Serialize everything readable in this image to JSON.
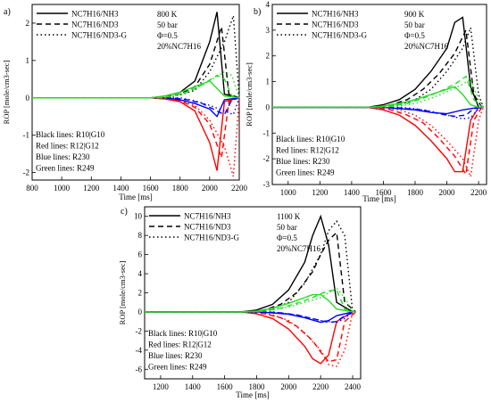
{
  "chart_data": [
    {
      "type": "line",
      "panel_label": "a)",
      "ylabel": "ROP [mole/cm3-sec]",
      "xlabel": "Time [ms]",
      "xlim": [
        800,
        2200
      ],
      "ylim": [
        -2.2,
        2.5
      ],
      "xticks": [
        800,
        1000,
        1200,
        1400,
        1600,
        1800,
        2000,
        2200
      ],
      "yticks": [
        -2,
        -1,
        0,
        1,
        2
      ],
      "legend": [
        "NC7H16/NH3",
        "NC7H16/ND3",
        "NC7H16/ND3-G"
      ],
      "conditions": [
        "800 K",
        "50 bar",
        "Φ=0.5",
        "20%NC7H16"
      ],
      "notes": [
        "Black lines: R10|G10",
        "Red lines: R12|G12",
        "Blue lines: R230",
        "Green lines: R249"
      ],
      "series": [
        {
          "color": "black",
          "dash": "solid",
          "x": [
            800,
            1600,
            1700,
            1800,
            1900,
            2000,
            2050,
            2100,
            2200
          ],
          "y": [
            0,
            0,
            0.05,
            0.15,
            0.45,
            1.5,
            2.3,
            0.1,
            0
          ]
        },
        {
          "color": "black",
          "dash": "dashed",
          "x": [
            800,
            1600,
            1700,
            1800,
            1900,
            2000,
            2080,
            2130,
            2200
          ],
          "y": [
            0,
            0,
            0.03,
            0.1,
            0.3,
            0.9,
            1.9,
            0.1,
            0
          ]
        },
        {
          "color": "black",
          "dash": "dotted",
          "x": [
            800,
            1700,
            1800,
            1900,
            2000,
            2100,
            2160,
            2200
          ],
          "y": [
            0,
            0,
            0.08,
            0.2,
            0.7,
            1.5,
            2.2,
            0
          ]
        },
        {
          "color": "red",
          "dash": "solid",
          "x": [
            800,
            1600,
            1700,
            1800,
            1900,
            2000,
            2050,
            2100,
            2200
          ],
          "y": [
            0,
            0,
            -0.03,
            -0.1,
            -0.35,
            -1.2,
            -1.95,
            -0.1,
            0
          ]
        },
        {
          "color": "red",
          "dash": "dashed",
          "x": [
            800,
            1600,
            1700,
            1800,
            1900,
            2000,
            2080,
            2130,
            2200
          ],
          "y": [
            0,
            0,
            -0.02,
            -0.08,
            -0.25,
            -0.7,
            -1.6,
            -0.1,
            0
          ]
        },
        {
          "color": "red",
          "dash": "dotted",
          "x": [
            800,
            1700,
            1800,
            1900,
            2000,
            2100,
            2160,
            2200
          ],
          "y": [
            0,
            0,
            -0.06,
            -0.2,
            -0.6,
            -1.3,
            -2.1,
            0
          ]
        },
        {
          "color": "blue",
          "dash": "solid",
          "x": [
            800,
            1700,
            1800,
            1900,
            2000,
            2050,
            2100,
            2200
          ],
          "y": [
            0,
            0,
            -0.05,
            -0.15,
            -0.3,
            -0.5,
            -0.05,
            0
          ]
        },
        {
          "color": "blue",
          "dash": "dashed",
          "x": [
            800,
            1750,
            1850,
            1950,
            2050,
            2100,
            2150,
            2200
          ],
          "y": [
            0,
            0,
            -0.05,
            -0.15,
            -0.35,
            -0.45,
            -0.05,
            0
          ]
        },
        {
          "color": "blue",
          "dash": "dotted",
          "x": [
            800,
            1800,
            1900,
            2000,
            2100,
            2160,
            2200
          ],
          "y": [
            0,
            0,
            -0.08,
            -0.2,
            -0.35,
            -0.45,
            0
          ]
        },
        {
          "color": "#22dd22",
          "dash": "solid",
          "x": [
            800,
            1600,
            1700,
            1800,
            1900,
            2000,
            2050,
            2100,
            2200
          ],
          "y": [
            0,
            0,
            0.05,
            0.15,
            0.3,
            0.45,
            0.25,
            0.05,
            0
          ]
        },
        {
          "color": "#22dd22",
          "dash": "dashed",
          "x": [
            800,
            1650,
            1750,
            1850,
            1950,
            2050,
            2100,
            2150,
            2200
          ],
          "y": [
            0,
            0,
            0.05,
            0.15,
            0.35,
            0.6,
            0.5,
            0.05,
            0
          ]
        },
        {
          "color": "#22dd22",
          "dash": "dotted",
          "x": [
            800,
            1700,
            1800,
            1900,
            2000,
            2100,
            2150,
            2200
          ],
          "y": [
            0,
            0,
            0.1,
            0.25,
            0.45,
            0.7,
            0.6,
            0
          ]
        }
      ]
    },
    {
      "type": "line",
      "panel_label": "b)",
      "ylabel": "ROP [mole/cm3-sec]",
      "xlabel": "Time [ms]",
      "xlim": [
        900,
        2250
      ],
      "ylim": [
        -3,
        4
      ],
      "xticks": [
        1000,
        1200,
        1400,
        1600,
        1800,
        2000,
        2200
      ],
      "yticks": [
        -3,
        -2,
        -1,
        0,
        1,
        2,
        3,
        4
      ],
      "legend": [
        "NC7H16/NH3",
        "NC7H16/ND3",
        "NC7H16/ND3-G"
      ],
      "conditions": [
        "900 K",
        "50 bar",
        "Φ=0.5",
        "20%NC7H16"
      ],
      "notes": [
        "Black lines: R10|G10",
        "Red lines: R12|G12",
        "Blue lines: R230",
        "Green lines: R249"
      ],
      "series": [
        {
          "color": "black",
          "dash": "solid",
          "x": [
            900,
            1500,
            1600,
            1700,
            1800,
            1900,
            2000,
            2050,
            2100,
            2150,
            2200
          ],
          "y": [
            0,
            0,
            0.1,
            0.3,
            0.7,
            1.4,
            2.3,
            3.3,
            3.5,
            0.8,
            0
          ]
        },
        {
          "color": "black",
          "dash": "dashed",
          "x": [
            900,
            1550,
            1650,
            1750,
            1850,
            1950,
            2050,
            2120,
            2170,
            2220
          ],
          "y": [
            0,
            0,
            0.1,
            0.3,
            0.7,
            1.3,
            2.1,
            3.0,
            0.5,
            0
          ]
        },
        {
          "color": "black",
          "dash": "dotted",
          "x": [
            900,
            1600,
            1700,
            1800,
            1900,
            2000,
            2100,
            2150,
            2200,
            2230
          ],
          "y": [
            0,
            0,
            0.1,
            0.3,
            0.7,
            1.4,
            2.3,
            3.1,
            0.5,
            0
          ]
        },
        {
          "color": "red",
          "dash": "solid",
          "x": [
            900,
            1500,
            1600,
            1700,
            1800,
            1900,
            2000,
            2050,
            2100,
            2150,
            2200
          ],
          "y": [
            0,
            0,
            -0.1,
            -0.3,
            -0.7,
            -1.3,
            -2.0,
            -2.5,
            -2.5,
            -0.5,
            0
          ]
        },
        {
          "color": "red",
          "dash": "dashed",
          "x": [
            900,
            1550,
            1650,
            1750,
            1850,
            1950,
            2050,
            2120,
            2170,
            2220
          ],
          "y": [
            0,
            0,
            -0.1,
            -0.3,
            -0.6,
            -1.2,
            -1.9,
            -2.6,
            -0.5,
            0
          ]
        },
        {
          "color": "red",
          "dash": "dotted",
          "x": [
            900,
            1600,
            1700,
            1800,
            1900,
            2000,
            2100,
            2150,
            2200,
            2230
          ],
          "y": [
            0,
            0,
            -0.1,
            -0.3,
            -0.7,
            -1.3,
            -2.0,
            -2.7,
            -0.5,
            0
          ]
        },
        {
          "color": "blue",
          "dash": "solid",
          "x": [
            900,
            1600,
            1700,
            1800,
            1900,
            2000,
            2100,
            2150,
            2200
          ],
          "y": [
            0,
            0,
            -0.05,
            -0.1,
            -0.2,
            -0.25,
            -0.1,
            -0.05,
            0
          ]
        },
        {
          "color": "blue",
          "dash": "dashed",
          "x": [
            900,
            1650,
            1750,
            1850,
            1950,
            2050,
            2120,
            2170,
            2220
          ],
          "y": [
            0,
            0,
            -0.05,
            -0.1,
            -0.25,
            -0.35,
            -0.3,
            -0.05,
            0
          ]
        },
        {
          "color": "blue",
          "dash": "dotted",
          "x": [
            900,
            1700,
            1800,
            1900,
            2000,
            2100,
            2150,
            2200,
            2230
          ],
          "y": [
            0,
            0,
            -0.05,
            -0.15,
            -0.3,
            -0.45,
            -0.4,
            -0.05,
            0
          ]
        },
        {
          "color": "#22dd22",
          "dash": "solid",
          "x": [
            900,
            1500,
            1600,
            1700,
            1800,
            1900,
            2000,
            2050,
            2100,
            2150,
            2200
          ],
          "y": [
            0,
            0,
            0.05,
            0.15,
            0.3,
            0.5,
            0.7,
            0.8,
            0.5,
            0.1,
            0
          ]
        },
        {
          "color": "#22dd22",
          "dash": "dashed",
          "x": [
            900,
            1550,
            1650,
            1750,
            1850,
            1950,
            2050,
            2120,
            2170,
            2220
          ],
          "y": [
            0,
            0,
            0.05,
            0.15,
            0.35,
            0.6,
            0.9,
            1.2,
            0.3,
            0
          ]
        },
        {
          "color": "#22dd22",
          "dash": "dotted",
          "x": [
            900,
            1600,
            1700,
            1800,
            1900,
            2000,
            2100,
            2150,
            2200,
            2230
          ],
          "y": [
            0,
            0,
            0.05,
            0.15,
            0.35,
            0.6,
            0.9,
            1.1,
            0.3,
            0
          ]
        }
      ]
    },
    {
      "type": "line",
      "panel_label": "c)",
      "ylabel": "ROP [mole/cm3-sec]",
      "xlabel": "Time [ms]",
      "xlim": [
        1100,
        2450
      ],
      "ylim": [
        -7,
        11
      ],
      "xticks": [
        1200,
        1400,
        1600,
        1800,
        2000,
        2200,
        2400
      ],
      "yticks": [
        -6,
        -4,
        -2,
        0,
        2,
        4,
        6,
        8,
        10
      ],
      "legend": [
        "NC7H16/NH3",
        "NC7H16/ND3",
        "NC7H16/ND3-G"
      ],
      "conditions": [
        "1100 K",
        "50 bar",
        "Φ=0.5",
        "20%NC7H16"
      ],
      "notes": [
        "Black lines: R10|G10",
        "Red lines: R12|G12",
        "Blue lines: R230",
        "Green lines: R249"
      ],
      "series": [
        {
          "color": "black",
          "dash": "solid",
          "x": [
            1100,
            1700,
            1800,
            1900,
            2000,
            2100,
            2150,
            2200,
            2250,
            2300,
            2400
          ],
          "y": [
            0,
            0,
            0.2,
            0.8,
            2.3,
            5.2,
            8.0,
            10.0,
            7.0,
            1.0,
            0
          ]
        },
        {
          "color": "black",
          "dash": "dashed",
          "x": [
            1100,
            1750,
            1850,
            1950,
            2050,
            2150,
            2200,
            2250,
            2300,
            2350,
            2420
          ],
          "y": [
            0,
            0,
            0.2,
            0.8,
            2.0,
            4.2,
            6.0,
            7.5,
            8.3,
            1.0,
            0
          ]
        },
        {
          "color": "black",
          "dash": "dotted",
          "x": [
            1100,
            1800,
            1900,
            2000,
            2100,
            2200,
            2250,
            2300,
            2350,
            2400
          ],
          "y": [
            0,
            0,
            0.3,
            1.0,
            3.0,
            6.0,
            8.5,
            9.5,
            8.0,
            0
          ]
        },
        {
          "color": "red",
          "dash": "solid",
          "x": [
            1100,
            1700,
            1800,
            1900,
            2000,
            2100,
            2150,
            2200,
            2250,
            2300,
            2400
          ],
          "y": [
            0,
            0,
            -0.2,
            -0.7,
            -1.8,
            -3.6,
            -4.9,
            -5.4,
            -4.5,
            -1.0,
            0
          ]
        },
        {
          "color": "red",
          "dash": "dashed",
          "x": [
            1100,
            1750,
            1850,
            1950,
            2050,
            2150,
            2200,
            2250,
            2300,
            2350,
            2420
          ],
          "y": [
            0,
            0,
            -0.2,
            -0.6,
            -1.5,
            -3.0,
            -4.2,
            -5.2,
            -5.0,
            -1.0,
            0
          ]
        },
        {
          "color": "red",
          "dash": "dotted",
          "x": [
            1100,
            1800,
            1900,
            2000,
            2100,
            2200,
            2250,
            2300,
            2350,
            2400
          ],
          "y": [
            0,
            0,
            -0.3,
            -0.9,
            -2.2,
            -4.0,
            -5.5,
            -5.7,
            -4.0,
            0
          ]
        },
        {
          "color": "blue",
          "dash": "solid",
          "x": [
            1100,
            1800,
            1900,
            2000,
            2100,
            2200,
            2250,
            2300,
            2400
          ],
          "y": [
            0,
            0,
            -0.1,
            -0.25,
            -0.6,
            -1.1,
            -0.9,
            -0.4,
            0
          ]
        },
        {
          "color": "blue",
          "dash": "dashed",
          "x": [
            1100,
            1850,
            1950,
            2050,
            2150,
            2250,
            2300,
            2350,
            2420
          ],
          "y": [
            0,
            0,
            -0.1,
            -0.3,
            -0.7,
            -1.1,
            -1.0,
            -0.4,
            0
          ]
        },
        {
          "color": "blue",
          "dash": "dotted",
          "x": [
            1100,
            1900,
            2000,
            2100,
            2200,
            2300,
            2350,
            2400
          ],
          "y": [
            0,
            0,
            -0.2,
            -0.5,
            -0.9,
            -1.1,
            -0.7,
            0
          ]
        },
        {
          "color": "#22dd22",
          "dash": "solid",
          "x": [
            1100,
            1700,
            1800,
            1900,
            2000,
            2100,
            2150,
            2200,
            2250,
            2300,
            2400
          ],
          "y": [
            0,
            0,
            0.1,
            0.4,
            0.9,
            1.5,
            1.8,
            1.8,
            1.2,
            0.3,
            0
          ]
        },
        {
          "color": "#22dd22",
          "dash": "dashed",
          "x": [
            1100,
            1750,
            1850,
            1950,
            2050,
            2150,
            2200,
            2250,
            2300,
            2350,
            2420
          ],
          "y": [
            0,
            0,
            0.1,
            0.4,
            0.9,
            1.5,
            1.9,
            2.2,
            2.3,
            0.3,
            0
          ]
        },
        {
          "color": "#22dd22",
          "dash": "dotted",
          "x": [
            1100,
            1800,
            1900,
            2000,
            2100,
            2200,
            2250,
            2300,
            2350,
            2400
          ],
          "y": [
            0,
            0,
            0.2,
            0.5,
            1.0,
            1.5,
            2.0,
            2.5,
            1.5,
            0
          ]
        }
      ]
    }
  ]
}
